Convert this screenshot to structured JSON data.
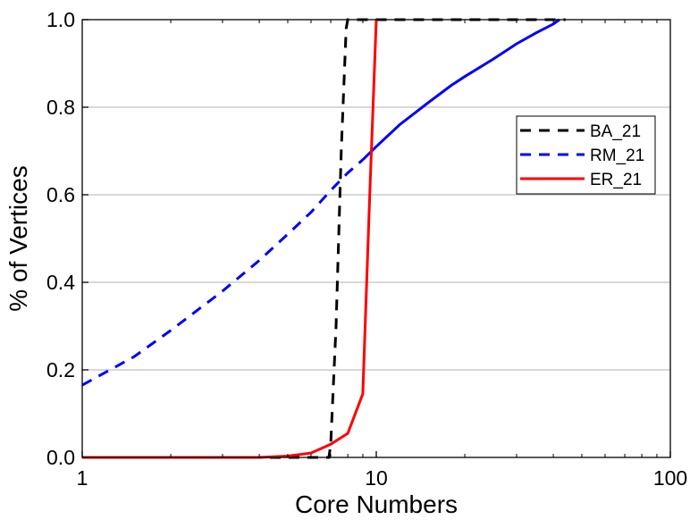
{
  "chart_data": {
    "type": "line",
    "xlabel": "Core Numbers",
    "ylabel": "% of Vertices",
    "xscale": "log",
    "xlim": [
      1,
      100
    ],
    "ylim": [
      0,
      1
    ],
    "xticks": [
      {
        "value": 1,
        "label": "1"
      },
      {
        "value": 10,
        "label": "10"
      },
      {
        "value": 100,
        "label": "100"
      }
    ],
    "yticks": [
      {
        "value": 0,
        "label": "0.0"
      },
      {
        "value": 0.2,
        "label": "0.2"
      },
      {
        "value": 0.4,
        "label": "0.4"
      },
      {
        "value": 0.6,
        "label": "0.6"
      },
      {
        "value": 0.8,
        "label": "0.8"
      },
      {
        "value": 1.0,
        "label": "1.0"
      }
    ],
    "grid": "horizontal",
    "legend_position": "right",
    "series": [
      {
        "name": "BA_21",
        "color": "#000000",
        "dash": "dashed",
        "x": [
          1,
          5,
          6.9,
          7.0,
          7.3,
          7.6,
          7.9,
          8.0,
          10,
          20,
          44
        ],
        "y": [
          0,
          0,
          0.0,
          0.03,
          0.3,
          0.7,
          0.98,
          1.0,
          1.0,
          1.0,
          1.0
        ]
      },
      {
        "name": "RM_21",
        "color": "#0000ff",
        "dash": "mixed",
        "x": [
          1,
          1.5,
          2,
          3,
          4,
          5,
          6,
          7,
          8,
          9,
          10,
          12,
          15,
          18,
          20,
          25,
          30,
          35,
          40,
          42
        ],
        "y": [
          0.165,
          0.23,
          0.29,
          0.38,
          0.45,
          0.51,
          0.56,
          0.61,
          0.65,
          0.68,
          0.71,
          0.76,
          0.81,
          0.85,
          0.87,
          0.91,
          0.945,
          0.97,
          0.99,
          1.0
        ]
      },
      {
        "name": "ER_21",
        "color": "#ff0000",
        "dash": "solid",
        "x": [
          1,
          2,
          3,
          4,
          5,
          6,
          7,
          8,
          9,
          9.5,
          10
        ],
        "y": [
          0,
          0,
          0,
          0,
          0.003,
          0.01,
          0.03,
          0.055,
          0.145,
          0.6,
          1.0
        ]
      }
    ]
  }
}
